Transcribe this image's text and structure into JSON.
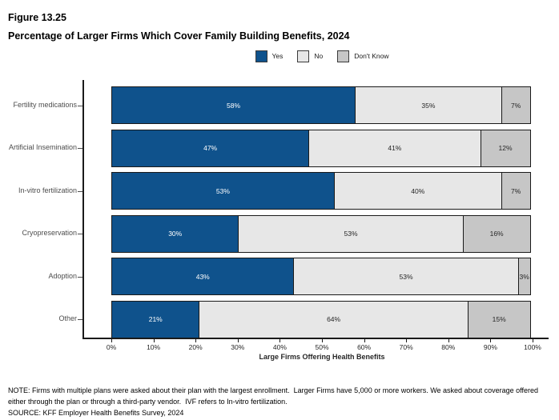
{
  "header": {
    "figure_label": "Figure 13.25",
    "title": "Percentage of Larger Firms Which Cover Family Building Benefits, 2024"
  },
  "chart_data": {
    "type": "bar",
    "stacked": true,
    "orientation": "horizontal",
    "title": "Percentage of Larger Firms Which Cover Family Building Benefits, 2024",
    "categories": [
      "Fertility medications",
      "Artificial Insemination",
      "In-vitro fertilization",
      "Cryopreservation",
      "Adoption",
      "Other"
    ],
    "series": [
      {
        "name": "Yes",
        "color": "#0F528C",
        "label_color": "#ffffff",
        "values": [
          58,
          47,
          53,
          30,
          43,
          21
        ]
      },
      {
        "name": "No",
        "color": "#E7E7E7",
        "label_color": "#262626",
        "values": [
          35,
          41,
          40,
          53,
          53,
          64
        ]
      },
      {
        "name": "Don't Know",
        "color": "#C6C6C6",
        "label_color": "#262626",
        "values": [
          7,
          12,
          7,
          16,
          3,
          15
        ]
      }
    ],
    "value_label_suffix": "%",
    "xlabel": "Large Firms Offering Health Benefits",
    "ylabel": "",
    "xlim": [
      0,
      100
    ],
    "x_ticks": [
      "0%",
      "10%",
      "20%",
      "30%",
      "40%",
      "50%",
      "60%",
      "70%",
      "80%",
      "90%",
      "100%"
    ],
    "grid": false,
    "legend_position": "top-center"
  },
  "footer": {
    "note": "NOTE: Firms with multiple plans were asked about their plan with the largest enrollment.  Larger Firms have 5,000 or more workers. We asked about coverage offered either through the plan or through a third-party vendor.  IVF refers to In-vitro fertilization.",
    "source": "SOURCE: KFF Employer Health Benefits Survey, 2024"
  },
  "colors": {
    "axis": "#1a1a1a",
    "bar_border": "#1a1a1a",
    "category_label": "#4d4d4d",
    "background": "#ffffff"
  }
}
